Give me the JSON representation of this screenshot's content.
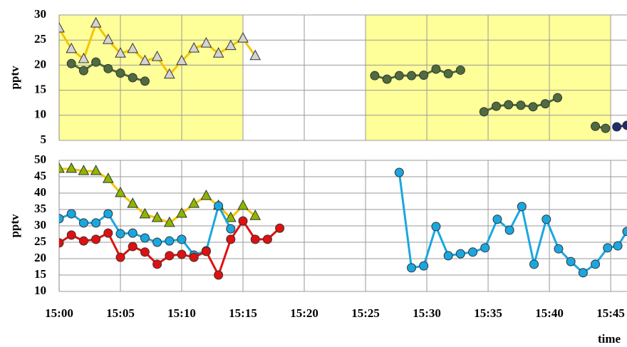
{
  "chart_data": [
    {
      "type": "line",
      "ylabel": "pptv",
      "ylim": [
        5,
        30
      ],
      "yticks": [
        5,
        10,
        15,
        20,
        25,
        30
      ],
      "xlim": [
        "15:00:00",
        "15:46:20"
      ],
      "grid": true,
      "highlight_spans": [
        [
          "15:00:00",
          "15:15:00"
        ],
        [
          "15:25:00",
          "15:45:00"
        ]
      ],
      "highlight_color": "#ffff99",
      "series": [
        {
          "color": "#f5c400",
          "marker": "triangle",
          "marker_color": "#d4d4d4",
          "x": [
            "15:00:00",
            "15:01:00",
            "15:02:00",
            "15:03:00",
            "15:04:00",
            "15:05:00",
            "15:06:00",
            "15:07:00",
            "15:08:00",
            "15:09:00",
            "15:10:00",
            "15:11:00",
            "15:12:00",
            "15:13:00",
            "15:14:00",
            "15:15:00",
            "15:16:00"
          ],
          "values": [
            27.3,
            23.2,
            21.2,
            28.3,
            25.0,
            22.3,
            23.2,
            20.8,
            21.6,
            18.1,
            20.8,
            23.3,
            24.3,
            22.3,
            23.8,
            25.3,
            21.8
          ]
        },
        {
          "color": "#4f6b3f",
          "marker": "circle",
          "marker_color": "#4f6b3f",
          "x": [
            "15:01:00",
            "15:02:00",
            "15:03:00",
            "15:04:00",
            "15:05:00",
            "15:06:00",
            "15:07:00"
          ],
          "values": [
            20.3,
            18.9,
            20.6,
            19.3,
            18.4,
            17.5,
            16.8
          ]
        },
        {
          "color": "#4f6b3f",
          "marker": "circle",
          "marker_color": "#4f6b3f",
          "x": [
            "15:25:45",
            "15:26:45",
            "15:27:45",
            "15:28:45",
            "15:29:45",
            "15:30:45",
            "15:31:45",
            "15:32:45"
          ],
          "values": [
            17.9,
            17.2,
            17.9,
            17.9,
            18.0,
            19.2,
            18.3,
            19.0
          ]
        },
        {
          "color": "#4f6b3f",
          "marker": "circle",
          "marker_color": "#4f6b3f",
          "x": [
            "15:34:40",
            "15:35:40",
            "15:36:40",
            "15:37:40",
            "15:38:40",
            "15:39:40",
            "15:40:40"
          ],
          "values": [
            10.7,
            11.8,
            12.1,
            12.0,
            11.7,
            12.3,
            13.5
          ]
        },
        {
          "color": "#4f6b3f",
          "marker": "circle",
          "marker_color": "#4f6b3f",
          "x": [
            "15:43:45",
            "15:44:35"
          ],
          "values": [
            7.8,
            7.4
          ]
        },
        {
          "color": "#1f2d6b",
          "marker": "circle",
          "marker_color": "#1f2d6b",
          "x": [
            "15:45:30",
            "15:46:20"
          ],
          "values": [
            7.7,
            8.0
          ]
        }
      ]
    },
    {
      "type": "line",
      "ylabel": "pptv",
      "xlabel": "time",
      "ylim": [
        10,
        50
      ],
      "yticks": [
        10,
        15,
        20,
        25,
        30,
        35,
        40,
        45,
        50
      ],
      "xlim": [
        "15:00:00",
        "15:46:20"
      ],
      "xticks": [
        "15:00",
        "15:05",
        "15:10",
        "15:15",
        "15:20",
        "15:25",
        "15:30",
        "15:35",
        "15:40",
        "15:45"
      ],
      "grid": true,
      "series": [
        {
          "color": "#f5c400",
          "marker": "triangle",
          "marker_color": "#8db600",
          "x": [
            "15:00:00",
            "15:01:00",
            "15:02:00",
            "15:03:00",
            "15:04:00",
            "15:05:00",
            "15:06:00",
            "15:07:00",
            "15:08:00",
            "15:09:00",
            "15:10:00",
            "15:11:00",
            "15:12:00",
            "15:13:00",
            "15:14:00",
            "15:15:00",
            "15:16:00"
          ],
          "values": [
            47.4,
            47.4,
            46.7,
            46.7,
            44.3,
            40.0,
            36.7,
            33.5,
            32.4,
            30.9,
            33.7,
            36.7,
            39.1,
            36.1,
            32.4,
            36.1,
            33.0
          ]
        },
        {
          "color": "#1aa7e0",
          "marker": "circle",
          "marker_color": "#1aa7e0",
          "x": [
            "15:00:00",
            "15:01:00",
            "15:02:00",
            "15:03:00",
            "15:04:00",
            "15:05:00",
            "15:06:00",
            "15:07:00",
            "15:08:00",
            "15:09:00",
            "15:10:00",
            "15:11:00",
            "15:12:00",
            "15:13:00",
            "15:14:00"
          ],
          "values": [
            32.2,
            33.7,
            30.9,
            30.9,
            33.7,
            27.6,
            27.8,
            26.3,
            25.0,
            25.4,
            25.9,
            21.1,
            22.4,
            36.1,
            29.1
          ]
        },
        {
          "color": "#e01010",
          "marker": "circle",
          "marker_color": "#e01010",
          "x": [
            "15:00:00",
            "15:01:00",
            "15:02:00",
            "15:03:00",
            "15:04:00",
            "15:05:00",
            "15:06:00",
            "15:07:00",
            "15:08:00",
            "15:09:00",
            "15:10:00",
            "15:11:00",
            "15:12:00",
            "15:13:00",
            "15:14:00",
            "15:15:00",
            "15:16:00",
            "15:17:00",
            "15:18:00"
          ],
          "values": [
            24.8,
            27.2,
            25.4,
            25.9,
            27.8,
            20.4,
            23.7,
            22.0,
            18.3,
            20.9,
            21.3,
            20.4,
            22.2,
            15.0,
            25.9,
            31.5,
            25.9,
            25.9,
            29.3
          ]
        },
        {
          "color": "#1aa7e0",
          "marker": "circle",
          "marker_color": "#1aa7e0",
          "x": [
            "15:27:45",
            "15:28:45",
            "15:29:45",
            "15:30:45",
            "15:31:45",
            "15:32:45",
            "15:33:45",
            "15:34:45",
            "15:35:45",
            "15:36:45",
            "15:37:45",
            "15:38:45",
            "15:39:45",
            "15:40:45",
            "15:41:45",
            "15:42:45",
            "15:43:45",
            "15:44:45",
            "15:45:35",
            "15:46:20"
          ],
          "values": [
            46.3,
            17.2,
            17.8,
            29.8,
            20.9,
            21.5,
            22.0,
            23.3,
            32.0,
            28.7,
            35.9,
            18.3,
            32.0,
            23.0,
            19.1,
            15.7,
            18.3,
            23.3,
            23.9,
            28.3
          ]
        }
      ]
    }
  ]
}
